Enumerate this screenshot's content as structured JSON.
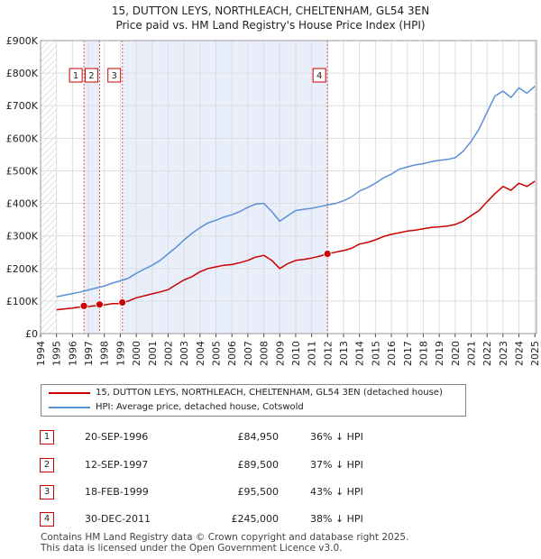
{
  "chart_data": {
    "type": "line",
    "title": "15, DUTTON LEYS, NORTHLEACH, CHELTENHAM, GL54 3EN",
    "subtitle": "Price paid vs. HM Land Registry's House Price Index (HPI)",
    "xlabel": "",
    "ylabel": "",
    "xlim": [
      1994,
      2025.1
    ],
    "ylim": [
      0,
      900000
    ],
    "y_ticks": [
      {
        "value": 0,
        "label": "£0"
      },
      {
        "value": 100000,
        "label": "£100K"
      },
      {
        "value": 200000,
        "label": "£200K"
      },
      {
        "value": 300000,
        "label": "£300K"
      },
      {
        "value": 400000,
        "label": "£400K"
      },
      {
        "value": 500000,
        "label": "£500K"
      },
      {
        "value": 600000,
        "label": "£600K"
      },
      {
        "value": 700000,
        "label": "£700K"
      },
      {
        "value": 800000,
        "label": "£800K"
      },
      {
        "value": 900000,
        "label": "£900K"
      }
    ],
    "x_ticks": [
      "1994",
      "1995",
      "1996",
      "1997",
      "1998",
      "1999",
      "2000",
      "2001",
      "2002",
      "2003",
      "2004",
      "2005",
      "2006",
      "2007",
      "2008",
      "2009",
      "2010",
      "2011",
      "2012",
      "2013",
      "2014",
      "2015",
      "2016",
      "2017",
      "2018",
      "2019",
      "2020",
      "2021",
      "2022",
      "2023",
      "2024",
      "2025"
    ],
    "grid": true,
    "hatched_ranges": [
      [
        1994,
        1995
      ],
      [
        2025,
        2025.1
      ]
    ],
    "shaded_ranges": [
      [
        1996.72,
        1997.7
      ],
      [
        1999.13,
        2011.99
      ]
    ],
    "series": [
      {
        "name": "15, DUTTON LEYS, NORTHLEACH, CHELTENHAM, GL54 3EN (detached house)",
        "color": "#cc0000",
        "x": [
          1995.0,
          1995.5,
          1996.0,
          1996.5,
          1996.72,
          1997.0,
          1997.5,
          1997.7,
          1998.0,
          1998.5,
          1999.0,
          1999.13,
          1999.5,
          2000.0,
          2000.5,
          2001.0,
          2001.5,
          2002.0,
          2002.5,
          2003.0,
          2003.5,
          2004.0,
          2004.5,
          2005.0,
          2005.5,
          2006.0,
          2006.5,
          2007.0,
          2007.5,
          2008.0,
          2008.5,
          2009.0,
          2009.5,
          2010.0,
          2010.5,
          2011.0,
          2011.5,
          2011.99,
          2012.5,
          2013.0,
          2013.5,
          2014.0,
          2014.5,
          2015.0,
          2015.5,
          2016.0,
          2016.5,
          2017.0,
          2017.5,
          2018.0,
          2018.5,
          2019.0,
          2019.5,
          2020.0,
          2020.5,
          2021.0,
          2021.5,
          2022.0,
          2022.5,
          2023.0,
          2023.5,
          2024.0,
          2024.5,
          2025.0
        ],
        "values": [
          73000,
          76000,
          78000,
          82000,
          84950,
          83000,
          86000,
          89500,
          88000,
          92000,
          92000,
          95500,
          100000,
          110000,
          116000,
          122000,
          128000,
          135000,
          150000,
          165000,
          175000,
          190000,
          200000,
          205000,
          210000,
          212000,
          218000,
          225000,
          235000,
          240000,
          225000,
          200000,
          215000,
          225000,
          228000,
          232000,
          238000,
          245000,
          250000,
          255000,
          262000,
          275000,
          280000,
          288000,
          298000,
          305000,
          310000,
          315000,
          318000,
          322000,
          326000,
          328000,
          330000,
          335000,
          345000,
          362000,
          378000,
          405000,
          430000,
          452000,
          440000,
          462000,
          452000,
          468000
        ]
      },
      {
        "name": "HPI: Average price, detached house, Cotswold",
        "color": "#5b8fd6",
        "x": [
          1995.0,
          1995.5,
          1996.0,
          1996.5,
          1997.0,
          1997.5,
          1998.0,
          1998.5,
          1999.0,
          1999.5,
          2000.0,
          2000.5,
          2001.0,
          2001.5,
          2002.0,
          2002.5,
          2003.0,
          2003.5,
          2004.0,
          2004.5,
          2005.0,
          2005.5,
          2006.0,
          2006.5,
          2007.0,
          2007.5,
          2008.0,
          2008.5,
          2009.0,
          2009.5,
          2010.0,
          2010.5,
          2011.0,
          2011.5,
          2012.0,
          2012.5,
          2013.0,
          2013.5,
          2014.0,
          2014.5,
          2015.0,
          2015.5,
          2016.0,
          2016.5,
          2017.0,
          2017.5,
          2018.0,
          2018.5,
          2019.0,
          2019.5,
          2020.0,
          2020.5,
          2021.0,
          2021.5,
          2022.0,
          2022.5,
          2023.0,
          2023.5,
          2024.0,
          2024.5,
          2025.0
        ],
        "values": [
          113000,
          118000,
          123000,
          128000,
          134000,
          140000,
          146000,
          155000,
          162000,
          170000,
          185000,
          198000,
          210000,
          225000,
          245000,
          265000,
          288000,
          308000,
          325000,
          340000,
          348000,
          358000,
          365000,
          375000,
          388000,
          398000,
          400000,
          375000,
          345000,
          362000,
          378000,
          382000,
          385000,
          390000,
          395000,
          400000,
          408000,
          420000,
          438000,
          448000,
          462000,
          478000,
          490000,
          505000,
          512000,
          518000,
          522000,
          528000,
          532000,
          535000,
          540000,
          560000,
          590000,
          628000,
          680000,
          730000,
          745000,
          725000,
          755000,
          738000,
          760000
        ]
      }
    ],
    "markers": [
      {
        "label": "1",
        "x": 1996.72,
        "value": 84950
      },
      {
        "label": "2",
        "x": 1997.7,
        "value": 89500
      },
      {
        "label": "3",
        "x": 1999.13,
        "value": 95500
      },
      {
        "label": "4",
        "x": 2011.99,
        "value": 245000
      }
    ]
  },
  "legend": {
    "property_label": "15, DUTTON LEYS, NORTHLEACH, CHELTENHAM, GL54 3EN (detached house)",
    "hpi_label": "HPI: Average price, detached house, Cotswold",
    "property_color": "#cc0000",
    "hpi_color": "#5b8fd6"
  },
  "transactions": [
    {
      "num": "1",
      "date": "20-SEP-1996",
      "price": "£84,950",
      "hpi": "36% ↓ HPI"
    },
    {
      "num": "2",
      "date": "12-SEP-1997",
      "price": "£89,500",
      "hpi": "37% ↓ HPI"
    },
    {
      "num": "3",
      "date": "18-FEB-1999",
      "price": "£95,500",
      "hpi": "43% ↓ HPI"
    },
    {
      "num": "4",
      "date": "30-DEC-2011",
      "price": "£245,000",
      "hpi": "38% ↓ HPI"
    }
  ],
  "footer": {
    "line1": "Contains HM Land Registry data © Crown copyright and database right 2025.",
    "line2": "This data is licensed under the Open Government Licence v3.0."
  }
}
